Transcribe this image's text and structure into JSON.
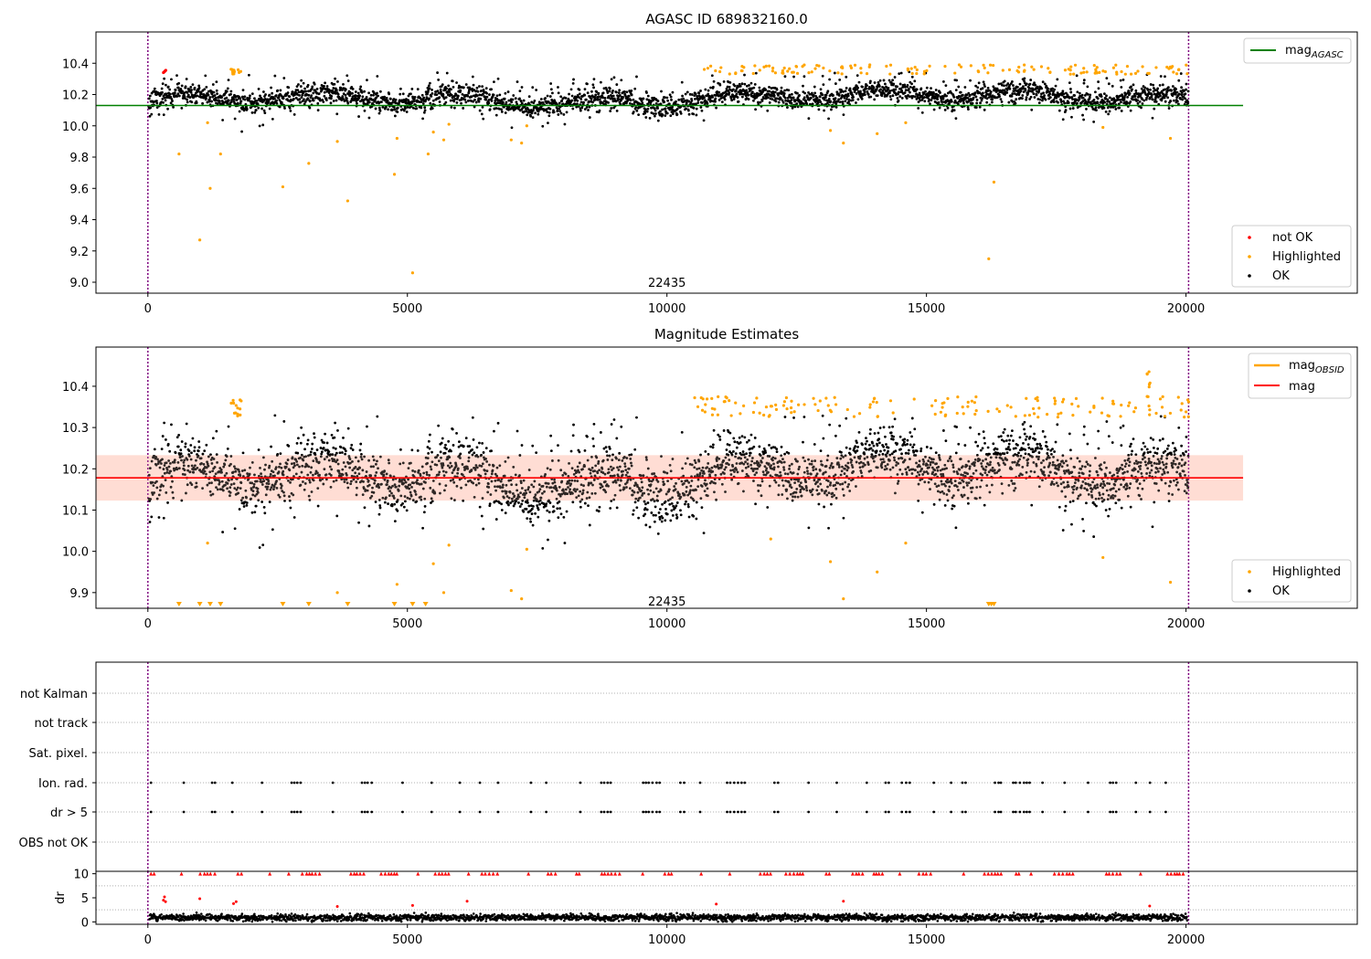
{
  "colors": {
    "ok": "#000000",
    "highlighted": "#ffa500",
    "not_ok": "#ff0000",
    "mag_agasc": "#008000",
    "mag": "#ff0000",
    "band": "#ffd7cc",
    "obsid": "#800080"
  },
  "chart_data": [
    {
      "type": "scatter",
      "title": "AGASC ID 689832160.0",
      "xlim": [
        -1000,
        23300
      ],
      "ylim": [
        8.93,
        10.6
      ],
      "xticks": [
        "0",
        "5000",
        "10000",
        "15000",
        "20000"
      ],
      "yticks": [
        "9.0",
        "9.2",
        "9.4",
        "9.6",
        "9.8",
        "10.0",
        "10.2",
        "10.4"
      ],
      "obsid_boundaries": [
        0,
        20050
      ],
      "annotation": {
        "x": 10000,
        "y": 9.0,
        "text": "22435"
      },
      "mag_agasc": 10.13,
      "legend_lines": [
        {
          "name": "mag_AGASC"
        }
      ],
      "legend_points": [
        {
          "name": "not OK"
        },
        {
          "name": "Highlighted"
        },
        {
          "name": "OK"
        }
      ],
      "highlighted_points": [
        [
          600,
          9.82
        ],
        [
          1000,
          9.27
        ],
        [
          1150,
          10.02
        ],
        [
          1200,
          9.6
        ],
        [
          1400,
          9.82
        ],
        [
          2600,
          9.61
        ],
        [
          3100,
          9.76
        ],
        [
          3650,
          9.9
        ],
        [
          3850,
          9.52
        ],
        [
          4750,
          9.69
        ],
        [
          4800,
          9.92
        ],
        [
          5100,
          9.06
        ],
        [
          5400,
          9.82
        ],
        [
          5500,
          9.96
        ],
        [
          5700,
          9.91
        ],
        [
          5800,
          10.01
        ],
        [
          7000,
          9.91
        ],
        [
          7200,
          9.89
        ],
        [
          7300,
          10.0
        ],
        [
          13150,
          9.97
        ],
        [
          13400,
          9.89
        ],
        [
          14050,
          9.95
        ],
        [
          14600,
          10.02
        ],
        [
          16200,
          9.15
        ],
        [
          16300,
          9.64
        ],
        [
          18400,
          9.99
        ],
        [
          19700,
          9.92
        ]
      ]
    },
    {
      "type": "scatter",
      "title": "Magnitude Estimates",
      "xlim": [
        -1000,
        23300
      ],
      "ylim": [
        9.862,
        10.495
      ],
      "xticks": [
        "0",
        "5000",
        "10000",
        "15000",
        "20000"
      ],
      "yticks": [
        "9.9",
        "10.0",
        "10.1",
        "10.2",
        "10.3",
        "10.4"
      ],
      "obsid_boundaries": [
        0,
        20050
      ],
      "annotation": {
        "x": 10000,
        "y": 9.88,
        "text": "22435"
      },
      "mag": 10.178,
      "mag_band": [
        10.123,
        10.233
      ],
      "legend_lines": [
        {
          "name": "mag_OBSID"
        },
        {
          "name": "mag"
        }
      ],
      "legend_points": [
        {
          "name": "Highlighted"
        },
        {
          "name": "OK"
        }
      ],
      "highlighted_points": [
        [
          1150,
          10.02
        ],
        [
          3650,
          9.9
        ],
        [
          4800,
          9.92
        ],
        [
          5500,
          9.97
        ],
        [
          5700,
          9.9
        ],
        [
          5800,
          10.015
        ],
        [
          7000,
          9.905
        ],
        [
          7200,
          9.885
        ],
        [
          7300,
          10.005
        ],
        [
          12000,
          10.03
        ],
        [
          13150,
          9.975
        ],
        [
          13400,
          9.885
        ],
        [
          14050,
          9.95
        ],
        [
          14600,
          10.02
        ],
        [
          18400,
          9.985
        ],
        [
          19700,
          9.925
        ]
      ],
      "below_range_markers": [
        600,
        1000,
        1200,
        1400,
        2600,
        3100,
        3850,
        4750,
        5100,
        5350,
        16200,
        16250,
        16300
      ]
    },
    {
      "type": "scatter",
      "title": "",
      "xlim": [
        -1000,
        23300
      ],
      "categories": [
        "not Kalman",
        "not track",
        "Sat. pixel.",
        "Ion. rad.",
        "dr > 5",
        "OBS not OK"
      ],
      "obsid_boundaries": [
        0,
        20050
      ],
      "flag_rows": [
        "Ion. rad.",
        "dr > 5"
      ]
    },
    {
      "type": "scatter",
      "title": "",
      "ylabel": "dr",
      "xlim": [
        -1000,
        23300
      ],
      "ylim": [
        -0.5,
        10.5
      ],
      "xticks": [
        "0",
        "5000",
        "10000",
        "15000",
        "20000"
      ],
      "yticks": [
        "0",
        "5",
        "10"
      ],
      "obsid_boundaries": [
        0,
        20050
      ],
      "dr_cap": 10
    }
  ]
}
